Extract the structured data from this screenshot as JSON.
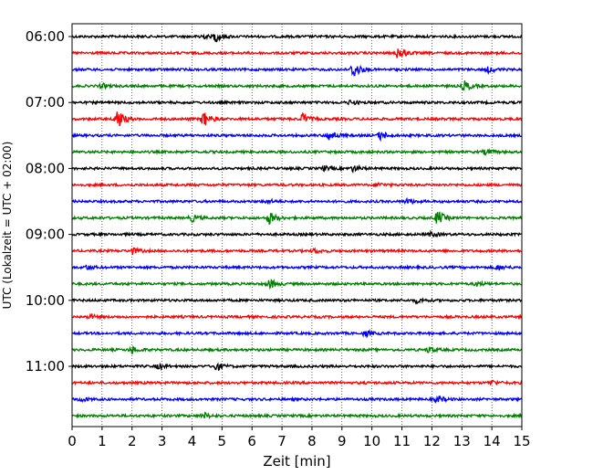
{
  "chart_data": {
    "type": "line",
    "title": "",
    "xlabel": "Zeit  [min]",
    "ylabel": "UTC (Lokalzeit = UTC + 02:00)",
    "xlim": [
      0,
      15
    ],
    "x_ticks": [
      "0",
      "1",
      "2",
      "3",
      "4",
      "5",
      "6",
      "7",
      "8",
      "9",
      "10",
      "11",
      "12",
      "13",
      "14",
      "15"
    ],
    "y_ticks": [
      "06:00",
      "07:00",
      "08:00",
      "09:00",
      "10:00",
      "11:00"
    ],
    "grid": "vertical dotted lines at each minute",
    "trace_interval_minutes": 15,
    "color_cycle": [
      "#000000",
      "#ff0000",
      "#0000ff",
      "#008000"
    ],
    "traces": [
      {
        "start": "06:00",
        "color": "#000000",
        "events": [
          {
            "t": 4.8,
            "amp": 0.9
          },
          {
            "t": 4.3,
            "amp": 0.5
          }
        ]
      },
      {
        "start": "06:15",
        "color": "#ff0000",
        "events": [
          {
            "t": 10.9,
            "amp": 1.3
          }
        ]
      },
      {
        "start": "06:30",
        "color": "#0000ff",
        "events": [
          {
            "t": 9.4,
            "amp": 1.6
          },
          {
            "t": 13.9,
            "amp": 0.5
          }
        ]
      },
      {
        "start": "06:45",
        "color": "#008000",
        "events": [
          {
            "t": 13.1,
            "amp": 0.9
          },
          {
            "t": 1.0,
            "amp": 0.4
          }
        ]
      },
      {
        "start": "07:00",
        "color": "#000000",
        "events": [
          {
            "t": 9.3,
            "amp": 0.4
          }
        ]
      },
      {
        "start": "07:15",
        "color": "#ff0000",
        "events": [
          {
            "t": 1.5,
            "amp": 2.0
          },
          {
            "t": 4.4,
            "amp": 1.4
          },
          {
            "t": 7.7,
            "amp": 1.0
          }
        ]
      },
      {
        "start": "07:30",
        "color": "#0000ff",
        "events": [
          {
            "t": 8.6,
            "amp": 1.0
          },
          {
            "t": 10.3,
            "amp": 0.8
          }
        ]
      },
      {
        "start": "07:45",
        "color": "#008000",
        "events": [
          {
            "t": 13.8,
            "amp": 0.5
          }
        ]
      },
      {
        "start": "08:00",
        "color": "#000000",
        "events": [
          {
            "t": 9.4,
            "amp": 0.6
          },
          {
            "t": 8.4,
            "amp": 0.4
          }
        ]
      },
      {
        "start": "08:15",
        "color": "#ff0000",
        "events": [
          {
            "t": 10.2,
            "amp": 0.4
          }
        ]
      },
      {
        "start": "08:30",
        "color": "#0000ff",
        "events": [
          {
            "t": 11.2,
            "amp": 0.5
          },
          {
            "t": 6.5,
            "amp": 0.4
          }
        ]
      },
      {
        "start": "08:45",
        "color": "#008000",
        "events": [
          {
            "t": 6.6,
            "amp": 1.1
          },
          {
            "t": 12.2,
            "amp": 1.3
          },
          {
            "t": 4.0,
            "amp": 0.6
          }
        ]
      },
      {
        "start": "09:00",
        "color": "#000000",
        "events": [
          {
            "t": 12.0,
            "amp": 0.4
          }
        ]
      },
      {
        "start": "09:15",
        "color": "#ff0000",
        "events": [
          {
            "t": 2.0,
            "amp": 0.6
          },
          {
            "t": 8.1,
            "amp": 0.4
          }
        ]
      },
      {
        "start": "09:30",
        "color": "#0000ff",
        "events": [
          {
            "t": 14.2,
            "amp": 0.5
          },
          {
            "t": 0.5,
            "amp": 0.4
          }
        ]
      },
      {
        "start": "09:45",
        "color": "#008000",
        "events": [
          {
            "t": 6.6,
            "amp": 0.8
          },
          {
            "t": 13.5,
            "amp": 0.4
          }
        ]
      },
      {
        "start": "10:00",
        "color": "#000000",
        "events": [
          {
            "t": 11.5,
            "amp": 0.4
          }
        ]
      },
      {
        "start": "10:15",
        "color": "#ff0000",
        "events": [
          {
            "t": 0.6,
            "amp": 0.4
          }
        ]
      },
      {
        "start": "10:30",
        "color": "#0000ff",
        "events": [
          {
            "t": 9.8,
            "amp": 0.5
          }
        ]
      },
      {
        "start": "10:45",
        "color": "#008000",
        "events": [
          {
            "t": 2.0,
            "amp": 0.6
          },
          {
            "t": 11.9,
            "amp": 0.5
          }
        ]
      },
      {
        "start": "11:00",
        "color": "#000000",
        "events": [
          {
            "t": 4.8,
            "amp": 0.8
          },
          {
            "t": 2.9,
            "amp": 0.4
          }
        ]
      },
      {
        "start": "11:15",
        "color": "#ff0000",
        "events": [
          {
            "t": 14.0,
            "amp": 0.4
          }
        ]
      },
      {
        "start": "11:30",
        "color": "#0000ff",
        "events": [
          {
            "t": 12.2,
            "amp": 0.6
          },
          {
            "t": 0.3,
            "amp": 0.4
          }
        ]
      },
      {
        "start": "11:45",
        "color": "#008000",
        "events": [
          {
            "t": 4.4,
            "amp": 0.5
          }
        ]
      }
    ]
  }
}
